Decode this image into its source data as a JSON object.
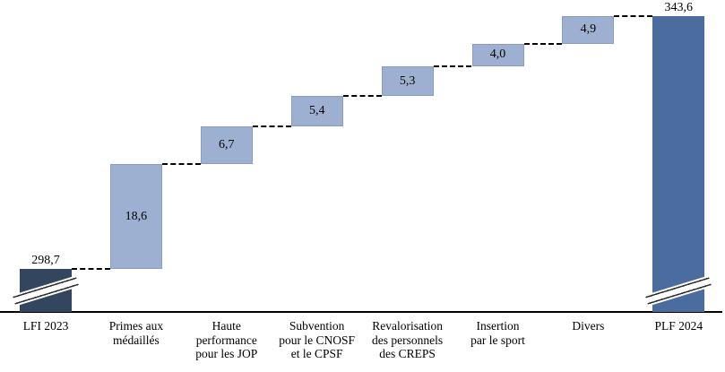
{
  "chart_data": {
    "type": "bar",
    "subtype": "waterfall",
    "title": "",
    "xlabel": "",
    "ylabel": "",
    "grid": false,
    "legend": false,
    "axis_break": true,
    "decimal_separator": ",",
    "categories": [
      "LFI 2023",
      "Primes aux médaillés",
      "Haute performance pour les JOP",
      "Subvention pour le CNOSF et le CPSF",
      "Revalorisation des personnels des CREPS",
      "Insertion par le sport",
      "Divers",
      "PLF 2024"
    ],
    "cumulative": [
      298.7,
      317.3,
      324.0,
      329.4,
      334.7,
      338.7,
      343.6,
      343.6
    ],
    "bars": [
      {
        "category": "LFI 2023",
        "category_lines": [
          "LFI 2023"
        ],
        "value": 298.7,
        "display_value": "298,7",
        "role": "total",
        "broken_axis": true,
        "value_label_position": "above",
        "color_key": "total_start"
      },
      {
        "category": "Primes aux médaillés",
        "category_lines": [
          "Primes aux",
          "médaillés"
        ],
        "value": 18.6,
        "display_value": "18,6",
        "role": "increment",
        "broken_axis": false,
        "value_label_position": "inside",
        "color_key": "increment"
      },
      {
        "category": "Haute performance pour les JOP",
        "category_lines": [
          "Haute",
          "performance",
          "pour les JOP"
        ],
        "value": 6.7,
        "display_value": "6,7",
        "role": "increment",
        "broken_axis": false,
        "value_label_position": "inside",
        "color_key": "increment"
      },
      {
        "category": "Subvention pour le CNOSF et le CPSF",
        "category_lines": [
          "Subvention",
          "pour le CNOSF",
          "et le CPSF"
        ],
        "value": 5.4,
        "display_value": "5,4",
        "role": "increment",
        "broken_axis": false,
        "value_label_position": "inside",
        "color_key": "increment"
      },
      {
        "category": "Revalorisation des personnels des CREPS",
        "category_lines": [
          "Revalorisation",
          "des personnels",
          "des CREPS"
        ],
        "value": 5.3,
        "display_value": "5,3",
        "role": "increment",
        "broken_axis": false,
        "value_label_position": "inside",
        "color_key": "increment"
      },
      {
        "category": "Insertion par le sport",
        "category_lines": [
          "Insertion",
          "par le sport"
        ],
        "value": 4.0,
        "display_value": "4,0",
        "role": "increment",
        "broken_axis": false,
        "value_label_position": "inside",
        "color_key": "increment"
      },
      {
        "category": "Divers",
        "category_lines": [
          "Divers"
        ],
        "value": 4.9,
        "display_value": "4,9",
        "role": "increment",
        "broken_axis": false,
        "value_label_position": "inside",
        "color_key": "increment"
      },
      {
        "category": "PLF 2024",
        "category_lines": [
          "PLF 2024"
        ],
        "value": 343.6,
        "display_value": "343,6",
        "role": "total",
        "broken_axis": true,
        "value_label_position": "above",
        "color_key": "total_end"
      }
    ],
    "colors": {
      "total_start": "#32465F",
      "increment": "#9EB0D1",
      "total_end": "#4B6C9E",
      "connector": "#000000",
      "axis": "#000000",
      "text": "#000000",
      "background": "#FFFFFF"
    },
    "connector_style": "dashed"
  }
}
